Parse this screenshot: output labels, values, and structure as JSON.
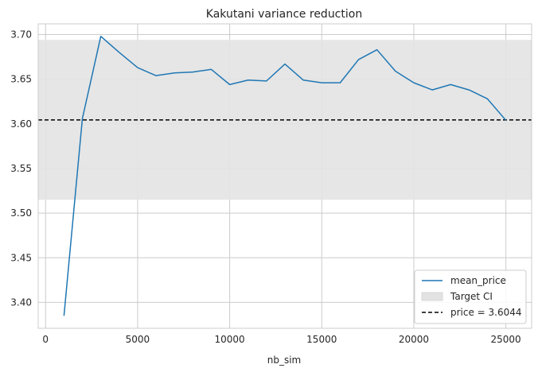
{
  "chart_data": {
    "type": "line",
    "title": "Kakutani variance reduction",
    "xlabel": "nb_sim",
    "ylabel": "",
    "xlim": [
      -400,
      26400
    ],
    "ylim": [
      3.371,
      3.712
    ],
    "grid": true,
    "legend_position": "lower-right",
    "x_ticks": [
      0,
      5000,
      10000,
      15000,
      20000,
      25000
    ],
    "x_tick_labels": [
      "0",
      "5000",
      "10000",
      "15000",
      "20000",
      "25000"
    ],
    "y_ticks": [
      3.4,
      3.45,
      3.5,
      3.55,
      3.6,
      3.65,
      3.7
    ],
    "y_tick_labels": [
      "3.40",
      "3.45",
      "3.50",
      "3.55",
      "3.60",
      "3.65",
      "3.70"
    ],
    "series": [
      {
        "name": "mean_price",
        "color": "#1f77b4",
        "x": [
          1000,
          2000,
          3000,
          4000,
          5000,
          6000,
          7000,
          8000,
          9000,
          10000,
          11000,
          12000,
          13000,
          14000,
          15000,
          16000,
          17000,
          18000,
          19000,
          20000,
          21000,
          22000,
          23000,
          24000,
          25000
        ],
        "y": [
          3.385,
          3.606,
          3.698,
          3.68,
          3.663,
          3.654,
          3.657,
          3.658,
          3.661,
          3.644,
          3.649,
          3.648,
          3.667,
          3.649,
          3.646,
          3.646,
          3.672,
          3.683,
          3.659,
          3.646,
          3.638,
          3.644,
          3.638,
          3.628,
          3.604
        ]
      }
    ],
    "band": {
      "name": "Target CI",
      "y0": 3.515,
      "y1": 3.694,
      "color": "#e3e3e3"
    },
    "hline": {
      "name": "price = 3.6044",
      "y": 3.6044,
      "color": "#000000"
    }
  }
}
